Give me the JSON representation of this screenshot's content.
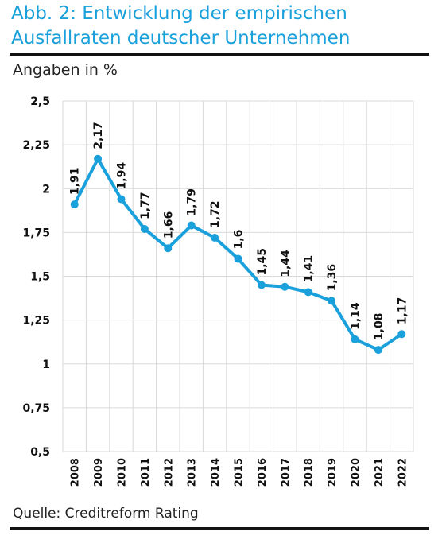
{
  "header": {
    "title": "Abb. 2: Entwicklung der empirischen Ausfallraten deutscher Unternehmen",
    "unit_note": "Angaben in %"
  },
  "footer": {
    "source": "Quelle: Creditreform Rating"
  },
  "colors": {
    "title": "#1aa0db",
    "series": "#1aa0db",
    "grid": "#d9d9d9",
    "rule": "#111111"
  },
  "chart_data": {
    "type": "line",
    "categories": [
      "2008",
      "2009",
      "2010",
      "2011",
      "2012",
      "2013",
      "2014",
      "2015",
      "2016",
      "2017",
      "2018",
      "2019",
      "2020",
      "2021",
      "2022"
    ],
    "series": [
      {
        "values": [
          1.91,
          2.17,
          1.94,
          1.77,
          1.66,
          1.79,
          1.72,
          1.6,
          1.45,
          1.44,
          1.41,
          1.36,
          1.14,
          1.08,
          1.17
        ],
        "labels": [
          "1,91",
          "2,17",
          "1,94",
          "1,77",
          "1,66",
          "1,79",
          "1,72",
          "1,6",
          "1,45",
          "1,44",
          "1,41",
          "1,36",
          "1,14",
          "1,08",
          "1,17"
        ]
      }
    ],
    "ylim": [
      0.5,
      2.5
    ],
    "yticks": [
      0.5,
      0.75,
      1,
      1.25,
      1.5,
      1.75,
      2,
      2.25,
      2.5
    ],
    "ytick_labels": [
      "0,5",
      "0,75",
      "1",
      "1,25",
      "1,5",
      "1,75",
      "2",
      "2,25",
      "2,5"
    ],
    "grid": true,
    "legend": "none"
  }
}
